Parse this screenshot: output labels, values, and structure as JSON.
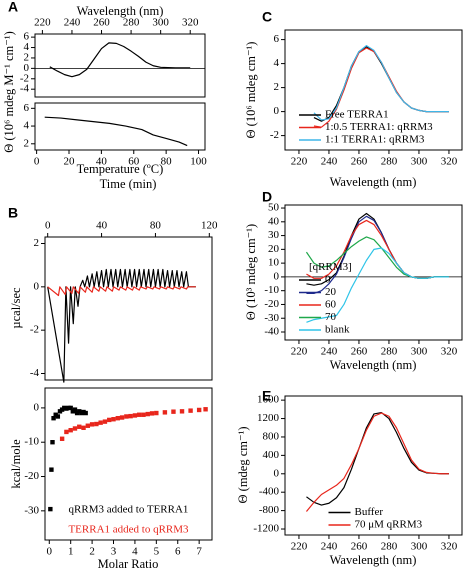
{
  "chart_data": [
    {
      "type": "line",
      "panel": "A",
      "x_axis": "top",
      "x_label": "Wavelength (nm)",
      "y_label": "Θ (10⁶ mdeg M⁻¹ cm⁻¹)",
      "xlim": [
        215,
        330
      ],
      "xticks": [
        220,
        240,
        260,
        280,
        300,
        320
      ],
      "ylim": [
        -5.5,
        6.6
      ],
      "yticks": [
        6,
        4,
        2,
        0,
        -2,
        -4
      ],
      "hline": 0,
      "series": [
        {
          "color": "#000000",
          "x": [
            225,
            230,
            235,
            240,
            245,
            250,
            255,
            260,
            265,
            270,
            275,
            280,
            285,
            290,
            295,
            300,
            310,
            320
          ],
          "values": [
            0.3,
            -0.5,
            -1.2,
            -1.6,
            -1.2,
            -0.2,
            1.8,
            3.8,
            4.9,
            4.8,
            4.2,
            3.3,
            2.3,
            1.2,
            0.5,
            0.2,
            0.1,
            0.1
          ]
        }
      ]
    },
    {
      "type": "line",
      "x_label": "Temperature (ºC)",
      "xlim": [
        -1,
        104
      ],
      "xticks": [
        0,
        20,
        40,
        60,
        80,
        100
      ],
      "ylim": [
        1.3,
        6.6
      ],
      "yticks": [
        6,
        4,
        2
      ],
      "series": [
        {
          "color": "#000000",
          "x": [
            5,
            15,
            25,
            35,
            45,
            55,
            65,
            72,
            80,
            88,
            93
          ],
          "values": [
            5.0,
            4.9,
            4.7,
            4.5,
            4.3,
            4.0,
            3.6,
            3.0,
            2.6,
            2.2,
            1.8
          ]
        }
      ]
    },
    {
      "type": "line",
      "panel": "B",
      "x_axis": "top",
      "x_label": "Time (min)",
      "y_label": "µcal/sec",
      "xlim": [
        -2,
        122
      ],
      "xticks": [
        0,
        40,
        80,
        120
      ],
      "ylim": [
        -4.3,
        2.3
      ],
      "yticks": [
        2,
        0,
        -2,
        -4
      ],
      "series": [
        {
          "color": "#000000",
          "x": [
            0,
            12,
            13.5,
            15.5,
            17,
            19,
            20.5,
            22.5,
            24,
            26,
            27.5,
            29.5,
            31,
            33,
            34.5,
            36.5,
            38,
            40,
            41.5,
            43.5,
            45,
            47,
            48.5,
            50.5,
            52,
            54,
            55.5,
            57.5,
            59,
            61,
            62.5,
            64.5,
            66,
            68,
            69.5,
            71.5,
            73,
            75,
            76.5,
            78.5,
            80,
            82,
            83.5,
            85.5,
            87,
            89,
            90.5,
            92.5,
            94,
            96,
            97.5,
            99.5,
            101,
            103,
            104.5,
            110
          ],
          "values": [
            0,
            -4.4,
            0,
            -2.6,
            0,
            -1.7,
            0,
            -0.9,
            0,
            0.3,
            0,
            0.5,
            0,
            0.6,
            0,
            0.7,
            0,
            0.75,
            0,
            0.8,
            0,
            0.8,
            0,
            0.8,
            0,
            0.8,
            0,
            0.8,
            0,
            0.8,
            0,
            0.8,
            0,
            0.8,
            0,
            0.8,
            0,
            0.8,
            0,
            0.8,
            0,
            0.8,
            0,
            0.8,
            0,
            0.75,
            0,
            0.75,
            0,
            0.75,
            0,
            0.7,
            0,
            0.7,
            0,
            0
          ]
        },
        {
          "color": "#e8261c",
          "x": [
            0,
            8,
            9,
            13,
            14,
            18,
            19,
            23,
            24,
            28,
            29,
            33,
            34,
            38,
            39,
            43,
            44,
            48,
            49,
            53,
            54,
            58,
            59,
            63,
            64,
            68,
            69,
            73,
            74,
            78,
            79,
            83,
            84,
            88,
            89,
            93,
            94,
            98,
            99,
            103,
            104,
            110
          ],
          "values": [
            0,
            -0.4,
            0,
            -0.35,
            0,
            -0.3,
            0,
            -0.3,
            0,
            -0.25,
            0,
            -0.25,
            0,
            -0.2,
            0,
            -0.2,
            0,
            -0.2,
            0,
            -0.15,
            0,
            -0.15,
            0,
            -0.15,
            0,
            -0.15,
            0,
            -0.1,
            0,
            -0.1,
            0,
            -0.1,
            0,
            -0.1,
            0,
            -0.1,
            0,
            -0.1,
            0,
            -0.1,
            0,
            0
          ]
        }
      ]
    },
    {
      "type": "scatter",
      "x_label": "Molar Ratio",
      "y_label": "kcal/mole",
      "legend": "lower center",
      "legend_style": "text",
      "xlim": [
        -0.2,
        7.6
      ],
      "xticks": [
        0,
        1,
        2,
        3,
        4,
        5,
        6,
        7
      ],
      "ylim": [
        -38.5,
        5.8
      ],
      "yticks": [
        0,
        -10,
        -20,
        -30
      ],
      "series": [
        {
          "name": "qRRM3 added to TERRA1",
          "color": "#000000",
          "x": [
            0.05,
            0.1,
            0.15,
            0.2,
            0.3,
            0.4,
            0.5,
            0.6,
            0.7,
            0.8,
            0.9,
            1.0,
            1.1,
            1.2,
            1.3,
            1.4,
            1.5,
            1.6,
            1.7
          ],
          "values": [
            -29.5,
            -18,
            -10,
            -3,
            -2,
            -2.5,
            -1,
            -0.5,
            0,
            -0.2,
            0,
            0,
            -1,
            -0.5,
            -1.5,
            -1,
            -1.5,
            -1.2,
            -1.5
          ]
        },
        {
          "name": "TERRA1 added to qRRM3",
          "color": "#e8261c",
          "x": [
            0.6,
            0.8,
            1.0,
            1.2,
            1.4,
            1.6,
            1.8,
            2.0,
            2.2,
            2.4,
            2.6,
            2.8,
            3.0,
            3.2,
            3.4,
            3.6,
            3.8,
            4.0,
            4.2,
            4.4,
            4.6,
            4.8,
            5.0,
            5.4,
            5.8,
            6.2,
            6.6,
            7.0,
            7.3
          ],
          "values": [
            -9,
            -7,
            -6.5,
            -6,
            -5.5,
            -5.8,
            -5.2,
            -4.8,
            -4.7,
            -4.3,
            -4,
            -3.5,
            -3.3,
            -3,
            -2.8,
            -2.5,
            -2.4,
            -2.2,
            -2,
            -2,
            -1.8,
            -1.6,
            -1.5,
            -1.3,
            -1.1,
            -1,
            -0.8,
            -0.6,
            -0.4
          ]
        }
      ]
    },
    {
      "type": "line",
      "panel": "C",
      "x_label": "Wavelength (nm)",
      "y_label": "Θ (10⁶ mdeg cm⁻¹)",
      "legend": "lower left",
      "legend_style": "line",
      "xlim": [
        210.7,
        328.7
      ],
      "xticks": [
        220,
        240,
        260,
        280,
        300,
        320
      ],
      "ylim": [
        -3.2,
        6.8
      ],
      "yticks": [
        6,
        4,
        2,
        0,
        -2
      ],
      "series": [
        {
          "name": "Free TERRA1",
          "color": "#000000",
          "x": [
            230,
            235,
            240,
            245,
            250,
            255,
            260,
            265,
            270,
            275,
            280,
            285,
            290,
            295,
            300,
            305,
            310,
            315,
            320
          ],
          "values": [
            -0.5,
            -0.8,
            -0.5,
            0.5,
            2.0,
            3.8,
            5.0,
            5.4,
            5.0,
            4.0,
            2.8,
            1.6,
            0.8,
            0.3,
            0.1,
            0,
            0,
            0,
            0
          ]
        },
        {
          "name": "1:0.5 TERRA1: qRRM3",
          "color": "#e8261c",
          "x": [
            230,
            235,
            240,
            245,
            250,
            255,
            260,
            265,
            270,
            275,
            280,
            285,
            290,
            295,
            300,
            305,
            310,
            315,
            320
          ],
          "values": [
            -1.2,
            -1.3,
            -0.8,
            0.2,
            1.8,
            3.6,
            4.9,
            5.3,
            5.0,
            4.1,
            2.9,
            1.7,
            0.8,
            0.3,
            0.1,
            0,
            0,
            0,
            0
          ]
        },
        {
          "name": "1:1    TERRA1: qRRM3",
          "color": "#3fb6e8",
          "x": [
            230,
            235,
            240,
            245,
            250,
            255,
            260,
            265,
            270,
            275,
            280,
            285,
            290,
            295,
            300,
            305,
            310,
            315,
            320
          ],
          "values": [
            -0.1,
            -0.7,
            -0.6,
            0.3,
            2.0,
            3.8,
            5.0,
            5.5,
            5.1,
            4.1,
            2.8,
            1.6,
            0.8,
            0.3,
            0.1,
            0,
            0,
            0,
            0
          ]
        }
      ]
    },
    {
      "type": "line",
      "panel": "D",
      "x_label": "Wavelength (nm)",
      "y_label": "Θ (10³ mdeg cm⁻¹)",
      "legend": "lower left",
      "legend_style": "line",
      "legend_title": "[qRRM3]",
      "hline": 0,
      "xlim": [
        210.7,
        328.7
      ],
      "xticks": [
        220,
        240,
        260,
        280,
        300,
        320
      ],
      "ylim": [
        -45.8,
        52.2
      ],
      "yticks": [
        50,
        40,
        30,
        20,
        10,
        0,
        -10,
        -20,
        -30,
        -40
      ],
      "series": [
        {
          "name": "0",
          "color": "#000000",
          "x": [
            225,
            230,
            235,
            240,
            245,
            250,
            255,
            260,
            265,
            270,
            275,
            280,
            285,
            290,
            295,
            300,
            305,
            310,
            315,
            320
          ],
          "values": [
            -5,
            -6,
            -5,
            -2,
            3,
            15,
            30,
            42,
            46,
            42,
            32,
            20,
            10,
            3,
            0,
            -1,
            -1,
            0,
            0,
            0
          ]
        },
        {
          "name": "20",
          "color": "#1f2a8c",
          "x": [
            225,
            230,
            235,
            240,
            245,
            250,
            255,
            260,
            265,
            270,
            275,
            280,
            285,
            290,
            295,
            300,
            305,
            310,
            315,
            320
          ],
          "values": [
            -12,
            -12,
            -10,
            -5,
            2,
            14,
            28,
            40,
            44,
            41,
            32,
            20,
            10,
            3,
            0,
            -1,
            -1,
            0,
            0,
            0
          ]
        },
        {
          "name": "60",
          "color": "#e8261c",
          "x": [
            225,
            230,
            235,
            240,
            245,
            250,
            255,
            260,
            265,
            270,
            275,
            280,
            285,
            290,
            295,
            300,
            305,
            310,
            315,
            320
          ],
          "values": [
            2,
            -1,
            -1,
            2,
            8,
            18,
            30,
            38,
            41,
            38,
            30,
            20,
            10,
            3,
            0,
            -1,
            -1,
            0,
            0,
            0
          ]
        },
        {
          "name": "70",
          "color": "#1fa84a",
          "x": [
            225,
            230,
            235,
            240,
            245,
            250,
            255,
            260,
            265,
            270,
            275,
            280,
            285,
            290,
            295,
            300,
            305,
            310,
            315,
            320
          ],
          "values": [
            18,
            10,
            7,
            8,
            12,
            17,
            22,
            26,
            29,
            27,
            21,
            14,
            7,
            2,
            0,
            -1,
            -1,
            0,
            0,
            0
          ]
        },
        {
          "name": "blank",
          "color": "#2fc4e8",
          "x": [
            225,
            230,
            235,
            240,
            245,
            250,
            255,
            260,
            265,
            270,
            275,
            280,
            285,
            290,
            295,
            300,
            305,
            310,
            315,
            320
          ],
          "values": [
            -33,
            -31,
            -30,
            -29,
            -28,
            -20,
            -8,
            2,
            12,
            20,
            21,
            17,
            10,
            3,
            0,
            -1,
            -1,
            0,
            0,
            0
          ]
        }
      ]
    },
    {
      "type": "line",
      "panel": "E",
      "x_label": "Wavelength (nm)",
      "y_label": "Θ (mdeg cm⁻¹)",
      "legend": "lower center",
      "legend_style": "line",
      "xlim": [
        210.7,
        328.7
      ],
      "xticks": [
        220,
        240,
        260,
        280,
        300,
        320
      ],
      "ylim": [
        -1330,
        1690
      ],
      "yticks": [
        1600,
        1200,
        800,
        400,
        0,
        -400,
        -800,
        -1200
      ],
      "series": [
        {
          "name": "Buffer",
          "color": "#000000",
          "x": [
            225,
            230,
            235,
            240,
            245,
            250,
            255,
            260,
            265,
            270,
            275,
            280,
            285,
            290,
            295,
            300,
            305,
            310,
            315,
            320
          ],
          "values": [
            -500,
            -620,
            -680,
            -640,
            -520,
            -300,
            100,
            550,
            1000,
            1300,
            1330,
            1200,
            900,
            550,
            250,
            80,
            20,
            10,
            0,
            0
          ]
        },
        {
          "name": "70 μM qRRM3",
          "color": "#e8261c",
          "x": [
            225,
            230,
            235,
            240,
            245,
            250,
            255,
            260,
            265,
            270,
            275,
            280,
            285,
            290,
            295,
            300,
            305,
            310,
            315,
            320
          ],
          "values": [
            -820,
            -620,
            -450,
            -350,
            -250,
            -100,
            200,
            550,
            950,
            1250,
            1320,
            1250,
            1000,
            650,
            300,
            100,
            30,
            10,
            0,
            0
          ]
        }
      ]
    }
  ]
}
